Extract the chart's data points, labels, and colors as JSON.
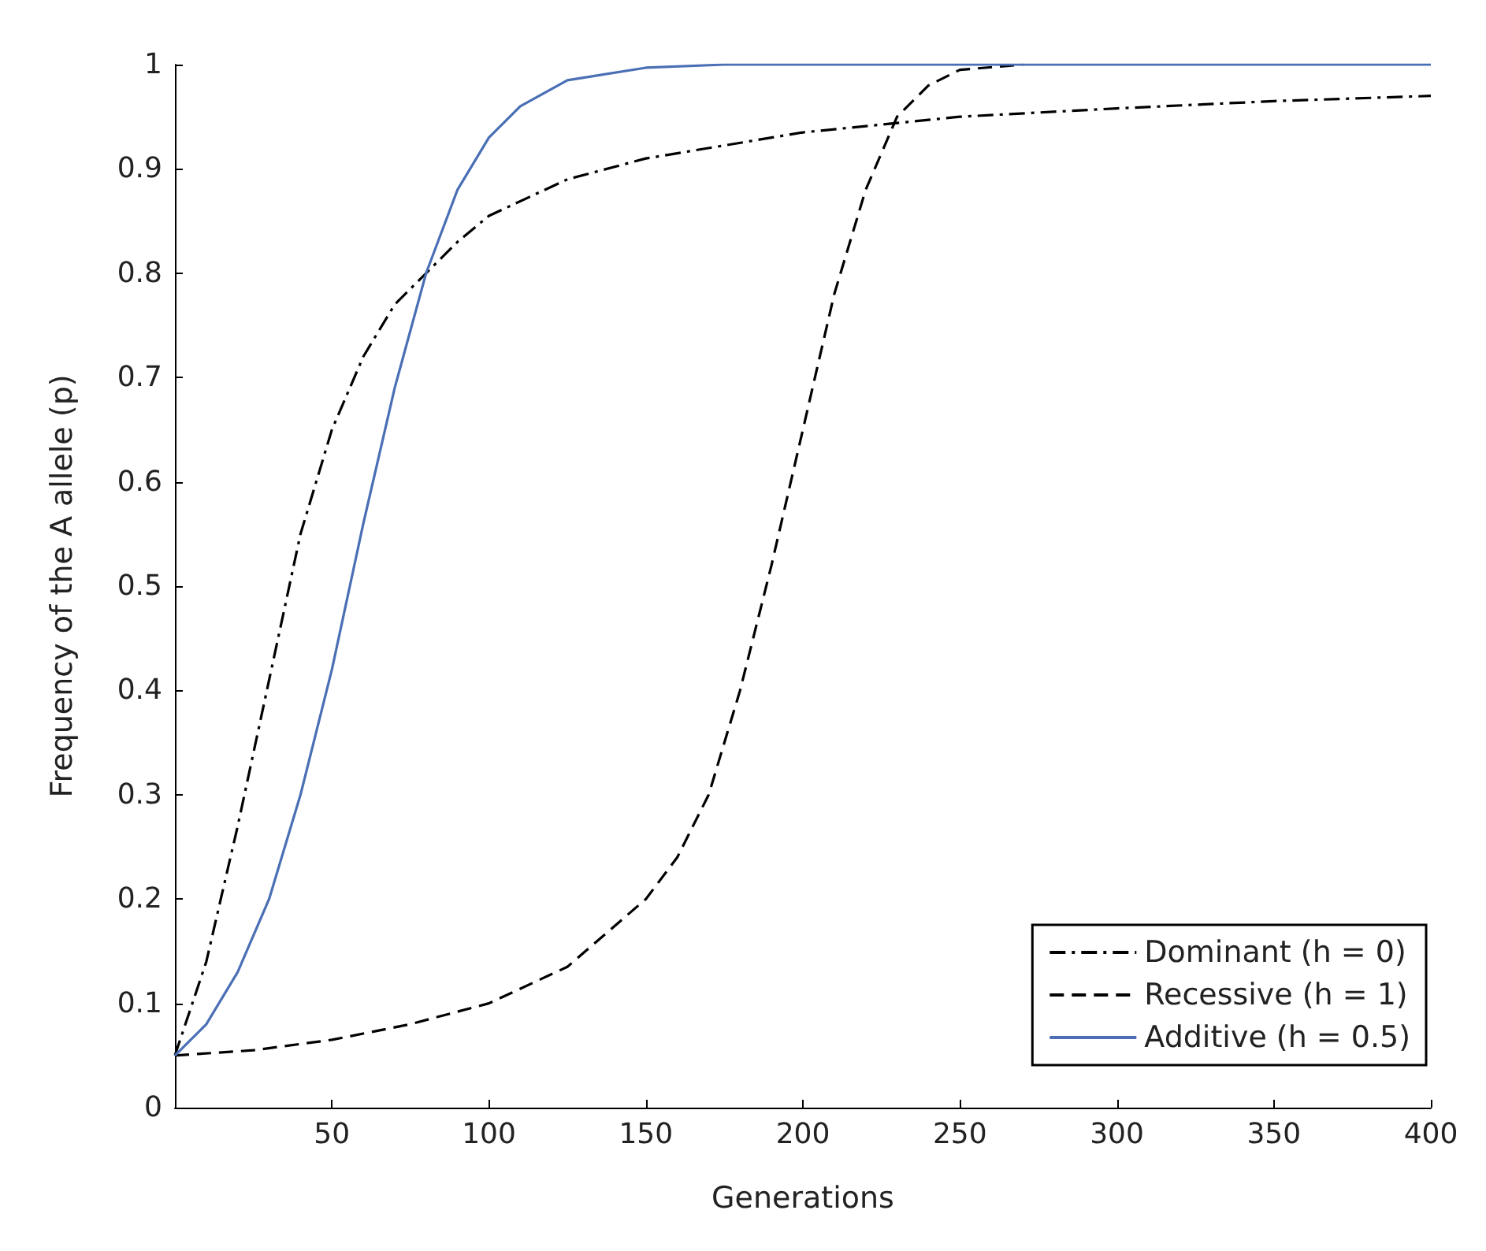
{
  "chart_data": {
    "type": "line",
    "xlabel": "Generations",
    "ylabel": "Frequency of the A allele (p)",
    "xlim": [
      0,
      400
    ],
    "xticks": [
      50,
      100,
      150,
      200,
      250,
      300,
      350,
      400
    ],
    "ylim": [
      0,
      1
    ],
    "yticks": [
      0,
      0.1,
      0.2,
      0.3,
      0.4,
      0.5,
      0.6,
      0.7,
      0.8,
      0.9,
      1
    ],
    "grid": false,
    "legend": "bottom right",
    "marker": "none",
    "series": [
      {
        "name": "Dominant (h = 0)",
        "color": "#000000",
        "line_style": "dashdot",
        "x": [
          0,
          10,
          20,
          30,
          40,
          50,
          60,
          70,
          80,
          90,
          100,
          125,
          150,
          200,
          250,
          300,
          350,
          400
        ],
        "values": [
          0.05,
          0.14,
          0.27,
          0.41,
          0.55,
          0.65,
          0.72,
          0.77,
          0.8,
          0.83,
          0.855,
          0.89,
          0.91,
          0.935,
          0.95,
          0.958,
          0.965,
          0.97
        ]
      },
      {
        "name": "Recessive (h = 1)",
        "color": "#000000",
        "line_style": "dashed",
        "x": [
          0,
          25,
          50,
          75,
          100,
          125,
          150,
          160,
          170,
          180,
          190,
          200,
          210,
          220,
          230,
          240,
          250,
          270
        ],
        "values": [
          0.05,
          0.055,
          0.065,
          0.08,
          0.1,
          0.135,
          0.2,
          0.24,
          0.3,
          0.4,
          0.52,
          0.65,
          0.78,
          0.88,
          0.95,
          0.98,
          0.995,
          1
        ]
      },
      {
        "name": "Additive (h = 0.5)",
        "color": "#4a6fb5",
        "line_style": "solid",
        "x": [
          0,
          10,
          20,
          30,
          40,
          50,
          60,
          70,
          80,
          90,
          100,
          110,
          125,
          150,
          175,
          200,
          400
        ],
        "values": [
          0.05,
          0.08,
          0.13,
          0.2,
          0.3,
          0.42,
          0.56,
          0.69,
          0.8,
          0.88,
          0.93,
          0.96,
          0.985,
          0.997,
          1,
          1,
          1
        ]
      }
    ]
  }
}
